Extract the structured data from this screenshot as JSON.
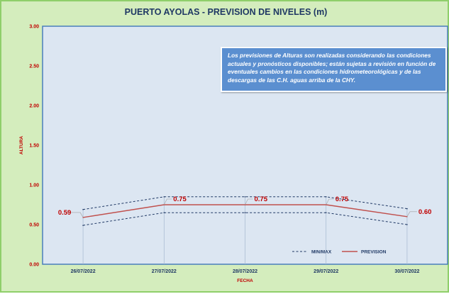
{
  "chart_data": {
    "type": "line",
    "title": "PUERTO AYOLAS - PREVISION DE NIVELES (m)",
    "xlabel": "FECHA",
    "ylabel": "ALTURA",
    "categories": [
      "26/07/2022",
      "27/07/2022",
      "28/07/2022",
      "29/07/2022",
      "30/07/2022"
    ],
    "ylim": [
      0,
      3
    ],
    "yticks": [
      "0.00",
      "0.50",
      "1.00",
      "1.50",
      "2.00",
      "2.50",
      "3.00"
    ],
    "series": [
      {
        "name": "PREVISION",
        "values": [
          0.59,
          0.75,
          0.75,
          0.75,
          0.6
        ],
        "color": "#c0504d",
        "style": "solid",
        "labels": [
          "0.59",
          "0.75",
          "0.75",
          "0.75",
          "0.60"
        ]
      },
      {
        "name": "MIN/MAX",
        "values": [
          0.69,
          0.85,
          0.85,
          0.85,
          0.7
        ],
        "color": "#1f3864",
        "style": "dashed"
      },
      {
        "name": "",
        "values": [
          0.49,
          0.65,
          0.65,
          0.65,
          0.5
        ],
        "color": "#1f3864",
        "style": "dashed"
      }
    ],
    "legend": [
      "MIN/MAX",
      "PREVISION"
    ],
    "legend_position": "bottom-right",
    "grid": false,
    "note": "Los previsiones de Alturas son realizadas considerando las condiciones actuales y pronósticos disponibles; están sujetas a revisión en función de eventuales cambios en las condiciones hidrometeorológicas y de las descargas de las C.H. aguas arriba de la CHY."
  },
  "colors": {
    "plot_bg": "#dce6f2",
    "plot_border": "#4a7ebb",
    "background": "#d4edbd",
    "note_bg": "#5b8fd0"
  }
}
